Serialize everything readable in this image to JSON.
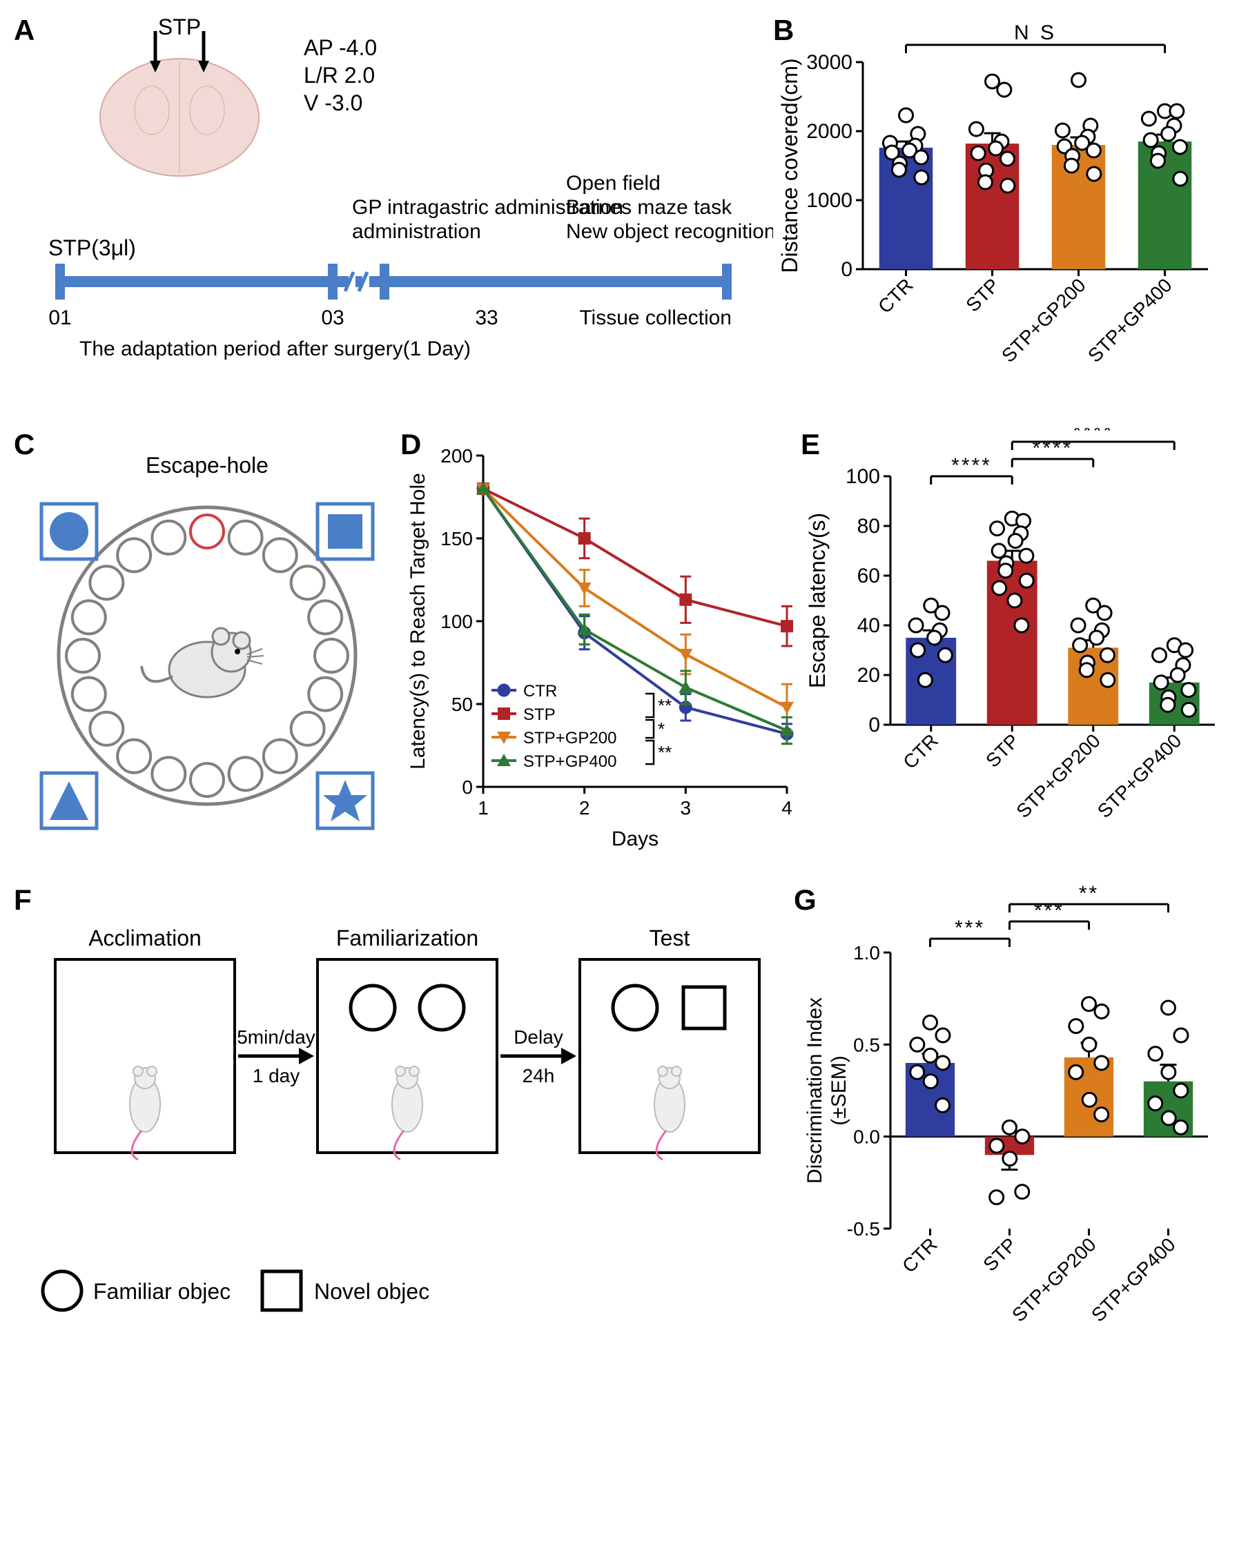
{
  "colors": {
    "ctr": "#2f3e9e",
    "stp": "#b02428",
    "gp200": "#d87c1e",
    "gp400": "#2d7a34",
    "axis": "#000000",
    "timeline": "#4a7ec7",
    "brain": "#e8c7c3",
    "gray": "#808080"
  },
  "groups": [
    "CTR",
    "STP",
    "STP+GP200",
    "STP+GP400"
  ],
  "panelA": {
    "stp_label": "STP",
    "coords": [
      "AP -4.0",
      "L/R 2.0",
      "V -3.0"
    ],
    "dose": "STP(3μl)",
    "timeline_pts": [
      "01",
      "03",
      "33",
      "Tissue collection"
    ],
    "adapt": "The adaptation period after surgery(1 Day)",
    "gp_label": "GP intragastric administration",
    "tests": [
      "Open field",
      "Barnes maze task",
      "New object recognition"
    ]
  },
  "panelB": {
    "ylabel": "Distance covered(cm)",
    "ylim": [
      0,
      3000
    ],
    "yticks": [
      0,
      1000,
      2000,
      3000
    ],
    "sig": "N S",
    "bars": [
      {
        "mean": 1760,
        "sem": 90,
        "points": [
          2230,
          1960,
          1830,
          1790,
          1720,
          1690,
          1620,
          1530,
          1440,
          1330
        ]
      },
      {
        "mean": 1820,
        "sem": 150,
        "points": [
          2720,
          2600,
          2030,
          1850,
          1750,
          1680,
          1600,
          1430,
          1260,
          1210
        ]
      },
      {
        "mean": 1800,
        "sem": 110,
        "points": [
          2740,
          2080,
          2010,
          1920,
          1830,
          1780,
          1720,
          1640,
          1500,
          1380
        ]
      },
      {
        "mean": 1850,
        "sem": 100,
        "points": [
          2290,
          2290,
          2180,
          2080,
          1960,
          1870,
          1770,
          1680,
          1570,
          1310
        ]
      }
    ]
  },
  "panelC": {
    "title": "Escape-hole"
  },
  "panelD": {
    "ylabel": "Latency(s) to Reach Target Hole",
    "xlabel": "Days",
    "xlim": [
      1,
      4
    ],
    "ylim": [
      0,
      200
    ],
    "yticks": [
      0,
      50,
      100,
      150,
      200
    ],
    "xticks": [
      1,
      2,
      3,
      4
    ],
    "series": [
      {
        "name": "CTR",
        "color": "#2f3e9e",
        "marker": "circle",
        "y": [
          180,
          93,
          48,
          32
        ],
        "sem": [
          0,
          10,
          8,
          6
        ]
      },
      {
        "name": "STP",
        "color": "#b02428",
        "marker": "square",
        "y": [
          180,
          150,
          113,
          97
        ],
        "sem": [
          0,
          12,
          14,
          12
        ]
      },
      {
        "name": "STP+GP200",
        "color": "#d87c1e",
        "marker": "triangle-down",
        "y": [
          180,
          120,
          80,
          48
        ],
        "sem": [
          0,
          11,
          12,
          14
        ]
      },
      {
        "name": "STP+GP400",
        "color": "#2d7a34",
        "marker": "triangle-up",
        "y": [
          180,
          95,
          60,
          34
        ],
        "sem": [
          0,
          9,
          10,
          8
        ]
      }
    ],
    "sig": [
      {
        "a": "CTR",
        "b": "STP",
        "label": "**"
      },
      {
        "a": "STP",
        "b": "STP+GP200",
        "label": "*"
      },
      {
        "a": "STP+GP200",
        "b": "STP+GP400",
        "label": "**"
      }
    ]
  },
  "panelE": {
    "ylabel": "Escape latency(s)",
    "ylim": [
      0,
      100
    ],
    "yticks": [
      0,
      20,
      40,
      60,
      80,
      100
    ],
    "bars": [
      {
        "mean": 35,
        "sem": 3,
        "points": [
          48,
          45,
          40,
          38,
          35,
          30,
          28,
          18
        ]
      },
      {
        "mean": 66,
        "sem": 4,
        "points": [
          83,
          82,
          79,
          77,
          74,
          70,
          68,
          65,
          62,
          58,
          55,
          50,
          40
        ]
      },
      {
        "mean": 31,
        "sem": 3,
        "points": [
          48,
          45,
          40,
          38,
          35,
          32,
          28,
          25,
          22,
          18
        ]
      },
      {
        "mean": 17,
        "sem": 2,
        "points": [
          32,
          30,
          28,
          24,
          20,
          17,
          14,
          11,
          8,
          6
        ]
      }
    ],
    "sig": [
      {
        "from": 0,
        "to": 1,
        "label": "****"
      },
      {
        "from": 1,
        "to": 2,
        "label": "****"
      },
      {
        "from": 1,
        "to": 3,
        "label": "****"
      }
    ]
  },
  "panelF": {
    "stage1": "Acclimation",
    "stage2": "Familiarization",
    "stage3": "Test",
    "arrow1_top": "5min/day",
    "arrow1_bot": "1 day",
    "arrow2_top": "Delay",
    "arrow2_bot": "24h",
    "legend_fam": "Familiar objec",
    "legend_nov": "Novel objec"
  },
  "panelG": {
    "ylabel": "Discrimination Index (±SEM)",
    "ylim": [
      -0.5,
      1.0
    ],
    "yticks": [
      -0.5,
      0,
      0.5,
      1.0
    ],
    "bars": [
      {
        "mean": 0.4,
        "sem": 0.05,
        "points": [
          0.62,
          0.55,
          0.5,
          0.44,
          0.4,
          0.35,
          0.3,
          0.17
        ]
      },
      {
        "mean": -0.1,
        "sem": 0.08,
        "points": [
          0.05,
          0.0,
          -0.05,
          -0.12,
          -0.3,
          -0.33
        ]
      },
      {
        "mean": 0.43,
        "sem": 0.08,
        "points": [
          0.72,
          0.68,
          0.6,
          0.5,
          0.4,
          0.35,
          0.2,
          0.12
        ]
      },
      {
        "mean": 0.3,
        "sem": 0.09,
        "points": [
          0.7,
          0.55,
          0.45,
          0.35,
          0.25,
          0.18,
          0.1,
          0.05
        ]
      }
    ],
    "sig": [
      {
        "from": 0,
        "to": 1,
        "label": "***"
      },
      {
        "from": 1,
        "to": 2,
        "label": "***"
      },
      {
        "from": 1,
        "to": 3,
        "label": "**"
      }
    ]
  }
}
